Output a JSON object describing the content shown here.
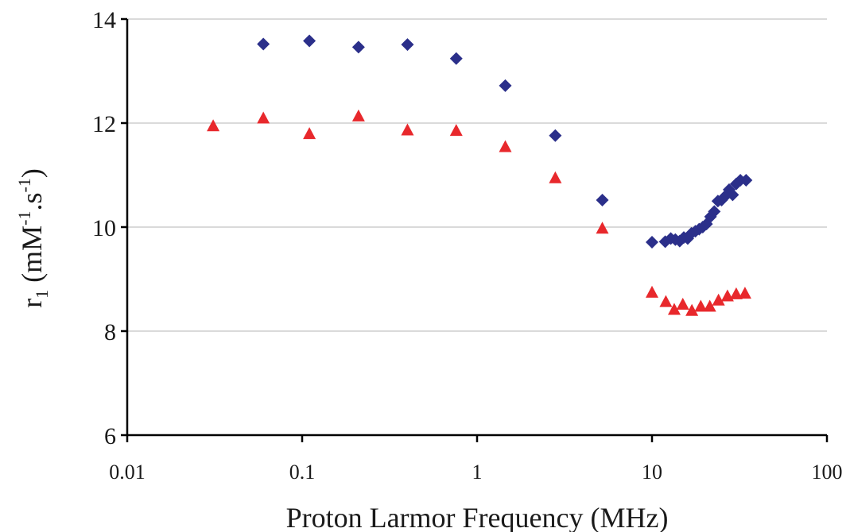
{
  "chart_data": {
    "type": "scatter",
    "title": "",
    "xlabel": "Proton Larmor Frequency (MHz)",
    "ylabel": {
      "base": "r",
      "sub": "1",
      "open": " (mM",
      "sup1": "-1",
      "mid": ".s",
      "sup2": "-1",
      "close": ")"
    },
    "xscale": "log",
    "xlim": [
      0.01,
      100
    ],
    "ylim": [
      6,
      14
    ],
    "x_ticks": [
      0.01,
      0.1,
      1,
      10,
      100
    ],
    "x_tick_labels": [
      "0.01",
      "0.1",
      "1",
      "10",
      "100"
    ],
    "y_ticks": [
      6,
      8,
      10,
      12,
      14
    ],
    "y_tick_labels": [
      "6",
      "8",
      "10",
      "12",
      "14"
    ],
    "grid": "horizontal",
    "legend": "none",
    "series": [
      {
        "marker": "diamond",
        "color": "#2b2f8a",
        "points": [
          [
            0.06,
            13.52
          ],
          [
            0.11,
            13.58
          ],
          [
            0.21,
            13.46
          ],
          [
            0.4,
            13.51
          ],
          [
            0.76,
            13.24
          ],
          [
            1.45,
            12.72
          ],
          [
            2.8,
            11.76
          ],
          [
            5.2,
            10.52
          ],
          [
            10.0,
            9.71
          ],
          [
            11.9,
            9.72
          ],
          [
            12.8,
            9.78
          ],
          [
            13.6,
            9.76
          ],
          [
            14.4,
            9.73
          ],
          [
            15.2,
            9.8
          ],
          [
            16.0,
            9.78
          ],
          [
            16.8,
            9.88
          ],
          [
            17.7,
            9.92
          ],
          [
            18.6,
            9.96
          ],
          [
            19.5,
            10.0
          ],
          [
            20.5,
            10.06
          ],
          [
            21.6,
            10.2
          ],
          [
            22.7,
            10.3
          ],
          [
            23.8,
            10.5
          ],
          [
            25.0,
            10.52
          ],
          [
            26.3,
            10.6
          ],
          [
            27.6,
            10.72
          ],
          [
            28.9,
            10.62
          ],
          [
            30.3,
            10.83
          ],
          [
            32.0,
            10.9
          ],
          [
            34.5,
            10.9
          ]
        ]
      },
      {
        "marker": "triangle",
        "color": "#e8282c",
        "points": [
          [
            0.031,
            11.95
          ],
          [
            0.06,
            12.1
          ],
          [
            0.11,
            11.8
          ],
          [
            0.21,
            12.14
          ],
          [
            0.4,
            11.87
          ],
          [
            0.76,
            11.86
          ],
          [
            1.45,
            11.55
          ],
          [
            2.8,
            10.95
          ],
          [
            5.2,
            9.98
          ],
          [
            10.0,
            8.75
          ],
          [
            12.0,
            8.57
          ],
          [
            13.4,
            8.42
          ],
          [
            15.0,
            8.52
          ],
          [
            16.9,
            8.4
          ],
          [
            19.0,
            8.48
          ],
          [
            21.4,
            8.48
          ],
          [
            24.0,
            8.6
          ],
          [
            27.0,
            8.68
          ],
          [
            30.3,
            8.72
          ],
          [
            34.0,
            8.73
          ]
        ]
      }
    ]
  }
}
